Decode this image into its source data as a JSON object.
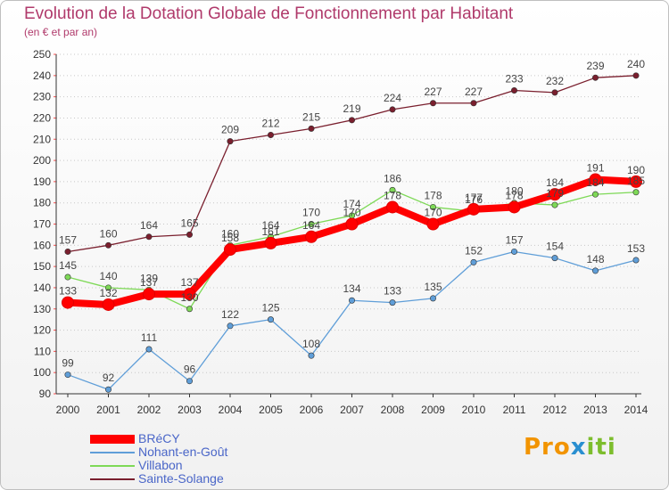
{
  "title": "Evolution de la Dotation Globale de Fonctionnement par Habitant",
  "subtitle": "(en € et par an)",
  "brand": {
    "part1": "Pro",
    "part2": "x",
    "part3": "iti"
  },
  "chart_data": {
    "type": "line",
    "x": [
      "2000",
      "2001",
      "2002",
      "2003",
      "2004",
      "2005",
      "2006",
      "2007",
      "2008",
      "2009",
      "2010",
      "2011",
      "2012",
      "2013",
      "2014"
    ],
    "ylim": [
      90,
      250
    ],
    "yticks": [
      "90",
      "100",
      "110",
      "120",
      "130",
      "140",
      "150",
      "160",
      "170",
      "180",
      "190",
      "200",
      "210",
      "220",
      "230",
      "240",
      "250"
    ],
    "grid": "horizontal dotted",
    "series": [
      {
        "name": "Sainte-Solange",
        "color": "#7a1f2e",
        "values": [
          157,
          160,
          164,
          165,
          209,
          212,
          215,
          219,
          224,
          227,
          227,
          233,
          232,
          239,
          240
        ],
        "labels": [
          "157",
          "160",
          "164",
          "165",
          "209",
          "212",
          "215",
          "219",
          "224",
          "227",
          "227",
          "233",
          "232",
          "239",
          "240"
        ]
      },
      {
        "name": "Nohant-en-Goût",
        "color": "#5f9ed8",
        "values": [
          99,
          92,
          111,
          96,
          122,
          125,
          108,
          134,
          133,
          135,
          152,
          157,
          154,
          148,
          153
        ],
        "labels": [
          "99",
          "92",
          "111",
          "96",
          "122",
          "125",
          "108",
          "134",
          "133",
          "135",
          "152",
          "157",
          "154",
          "148",
          "153"
        ]
      },
      {
        "name": "Villabon",
        "color": "#7ed957",
        "values": [
          145,
          140,
          139,
          130,
          160,
          164,
          170,
          174,
          186,
          178,
          176,
          180,
          179,
          184,
          185
        ],
        "labels": [
          "145",
          "140",
          "139",
          "130",
          "160",
          "164",
          "170",
          "174",
          "186",
          "178",
          "176",
          "180",
          "179",
          "184",
          "185"
        ]
      },
      {
        "name": "BRéCY",
        "color": "#ff0000",
        "values": [
          133,
          132,
          137,
          137,
          158,
          161,
          164,
          170,
          178,
          170,
          177,
          178,
          184,
          191,
          190
        ],
        "labels": [
          "133",
          "132",
          "137",
          "137",
          "158",
          "161",
          "164",
          "170",
          "178",
          "170",
          "177",
          "178",
          "184",
          "191",
          "190"
        ]
      }
    ],
    "legend": [
      "BRéCY",
      "Nohant-en-Goût",
      "Villabon",
      "Sainte-Solange"
    ],
    "legend_colors": [
      "#ff0000",
      "#5f9ed8",
      "#7ed957",
      "#7a1f2e"
    ]
  }
}
